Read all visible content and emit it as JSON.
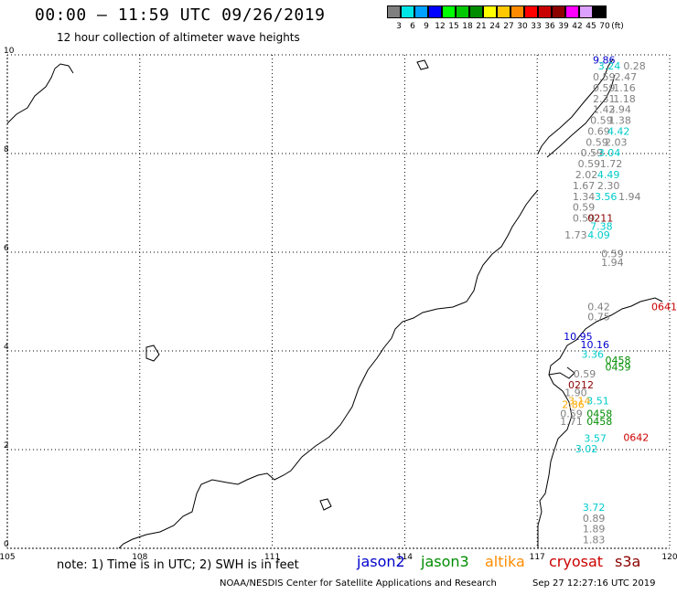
{
  "header": {
    "title": "00:00 – 11:59 UTC 09/26/2019",
    "subtitle": "12 hour collection of altimeter wave heights"
  },
  "legend": {
    "unit": "(ft)",
    "bins": [
      {
        "label": "3",
        "color": "#7f7f7f"
      },
      {
        "label": "6",
        "color": "#00e6e6"
      },
      {
        "label": "9",
        "color": "#00a0ff"
      },
      {
        "label": "12",
        "color": "#0000ff"
      },
      {
        "label": "15",
        "color": "#00ff00"
      },
      {
        "label": "18",
        "color": "#00c800"
      },
      {
        "label": "21",
        "color": "#008c00"
      },
      {
        "label": "24",
        "color": "#ffff00"
      },
      {
        "label": "27",
        "color": "#ffc800"
      },
      {
        "label": "30",
        "color": "#ff8c00"
      },
      {
        "label": "33",
        "color": "#ff0000"
      },
      {
        "label": "36",
        "color": "#c80000"
      },
      {
        "label": "39",
        "color": "#8c0000"
      },
      {
        "label": "42",
        "color": "#ff00ff"
      },
      {
        "label": "45",
        "color": "#dca0ff"
      },
      {
        "label": "70",
        "color": "#000000"
      }
    ]
  },
  "map": {
    "lon_ticks": [
      "105",
      "108",
      "111",
      "114",
      "117",
      "120"
    ],
    "lat_ticks": [
      "0",
      "2",
      "4",
      "6",
      "8",
      "10"
    ],
    "lon_range": [
      105,
      120
    ],
    "lat_range": [
      0,
      10
    ],
    "observations": [
      {
        "v": "9.86",
        "c": "#0000cc",
        "lon": 118.26,
        "lat": 9.82
      },
      {
        "v": "3.24",
        "c": "#00cccc",
        "lon": 118.38,
        "lat": 9.7
      },
      {
        "v": "0.28",
        "c": "#808080",
        "lon": 118.95,
        "lat": 9.7
      },
      {
        "v": "0.59",
        "c": "#808080",
        "lon": 118.26,
        "lat": 9.48
      },
      {
        "v": "2.47",
        "c": "#808080",
        "lon": 118.75,
        "lat": 9.48
      },
      {
        "v": "0.59",
        "c": "#808080",
        "lon": 118.26,
        "lat": 9.26
      },
      {
        "v": "1.16",
        "c": "#808080",
        "lon": 118.72,
        "lat": 9.26
      },
      {
        "v": "2.31",
        "c": "#808080",
        "lon": 118.26,
        "lat": 9.04
      },
      {
        "v": "1.18",
        "c": "#808080",
        "lon": 118.72,
        "lat": 9.04
      },
      {
        "v": "1.43",
        "c": "#808080",
        "lon": 118.26,
        "lat": 8.82
      },
      {
        "v": "2.94",
        "c": "#808080",
        "lon": 118.62,
        "lat": 8.82
      },
      {
        "v": "0.59",
        "c": "#808080",
        "lon": 118.2,
        "lat": 8.6
      },
      {
        "v": "1.38",
        "c": "#808080",
        "lon": 118.62,
        "lat": 8.6
      },
      {
        "v": "0.69",
        "c": "#808080",
        "lon": 118.14,
        "lat": 8.38
      },
      {
        "v": "4.42",
        "c": "#00cccc",
        "lon": 118.59,
        "lat": 8.38
      },
      {
        "v": "0.59",
        "c": "#808080",
        "lon": 118.1,
        "lat": 8.16
      },
      {
        "v": "2.03",
        "c": "#808080",
        "lon": 118.53,
        "lat": 8.16
      },
      {
        "v": "0.59",
        "c": "#808080",
        "lon": 117.98,
        "lat": 7.94
      },
      {
        "v": "3.04",
        "c": "#00cccc",
        "lon": 118.38,
        "lat": 7.94
      },
      {
        "v": "0.59",
        "c": "#808080",
        "lon": 117.92,
        "lat": 7.72
      },
      {
        "v": "1.72",
        "c": "#808080",
        "lon": 118.42,
        "lat": 7.72
      },
      {
        "v": "2.02",
        "c": "#808080",
        "lon": 117.86,
        "lat": 7.5
      },
      {
        "v": "4.49",
        "c": "#00cccc",
        "lon": 118.36,
        "lat": 7.5
      },
      {
        "v": "1.67",
        "c": "#808080",
        "lon": 117.8,
        "lat": 7.28
      },
      {
        "v": "2.30",
        "c": "#808080",
        "lon": 118.36,
        "lat": 7.28
      },
      {
        "v": "1.34",
        "c": "#808080",
        "lon": 117.8,
        "lat": 7.06
      },
      {
        "v": "3.56",
        "c": "#00cccc",
        "lon": 118.3,
        "lat": 7.06
      },
      {
        "v": "1.94",
        "c": "#808080",
        "lon": 118.84,
        "lat": 7.06
      },
      {
        "v": "0.59",
        "c": "#808080",
        "lon": 117.8,
        "lat": 6.84
      },
      {
        "v": "0.59",
        "c": "#808080",
        "lon": 117.8,
        "lat": 6.62
      },
      {
        "v": "0211",
        "c": "#8c0000",
        "lon": 118.14,
        "lat": 6.62
      },
      {
        "v": "7.38",
        "c": "#00cccc",
        "lon": 118.2,
        "lat": 6.45
      },
      {
        "v": "4.09",
        "c": "#00cccc",
        "lon": 118.14,
        "lat": 6.28
      },
      {
        "v": "1.73",
        "c": "#808080",
        "lon": 117.62,
        "lat": 6.28
      },
      {
        "v": "0.59",
        "c": "#808080",
        "lon": 118.45,
        "lat": 5.9
      },
      {
        "v": "1.94",
        "c": "#808080",
        "lon": 118.45,
        "lat": 5.72
      },
      {
        "v": "0.42",
        "c": "#808080",
        "lon": 118.14,
        "lat": 4.82
      },
      {
        "v": "0.75",
        "c": "#808080",
        "lon": 118.14,
        "lat": 4.62
      },
      {
        "v": "0641",
        "c": "#cc0000",
        "lon": 119.95,
        "lat": 4.82
      },
      {
        "v": "10.95",
        "c": "#0000cc",
        "lon": 117.6,
        "lat": 4.22
      },
      {
        "v": "10.16",
        "c": "#0000cc",
        "lon": 117.98,
        "lat": 4.06
      },
      {
        "v": "3.36",
        "c": "#00cccc",
        "lon": 118.0,
        "lat": 3.86
      },
      {
        "v": "0458",
        "c": "#008c00",
        "lon": 118.54,
        "lat": 3.74
      },
      {
        "v": "0459",
        "c": "#008c00",
        "lon": 118.54,
        "lat": 3.6
      },
      {
        "v": "0.59",
        "c": "#808080",
        "lon": 117.82,
        "lat": 3.46
      },
      {
        "v": "0212",
        "c": "#8c0000",
        "lon": 117.7,
        "lat": 3.24
      },
      {
        "v": "1.90",
        "c": "#808080",
        "lon": 117.62,
        "lat": 3.08
      },
      {
        "v": "3.14",
        "c": "#ffaa00",
        "lon": 117.7,
        "lat": 2.92
      },
      {
        "v": "3.51",
        "c": "#00cccc",
        "lon": 118.12,
        "lat": 2.92
      },
      {
        "v": "2.86",
        "c": "#ffaa00",
        "lon": 117.56,
        "lat": 2.84
      },
      {
        "v": "0458",
        "c": "#008c00",
        "lon": 118.12,
        "lat": 2.66
      },
      {
        "v": "0458",
        "c": "#008c00",
        "lon": 118.12,
        "lat": 2.5
      },
      {
        "v": "0.59",
        "c": "#808080",
        "lon": 117.52,
        "lat": 2.66
      },
      {
        "v": "1.71",
        "c": "#808080",
        "lon": 117.52,
        "lat": 2.5
      },
      {
        "v": "0642",
        "c": "#cc0000",
        "lon": 118.95,
        "lat": 2.18
      },
      {
        "v": "3.57",
        "c": "#00cccc",
        "lon": 118.06,
        "lat": 2.16
      },
      {
        "v": "3.02",
        "c": "#00cccc",
        "lon": 117.86,
        "lat": 1.94
      },
      {
        "v": "3.72",
        "c": "#00cccc",
        "lon": 118.03,
        "lat": 0.76
      },
      {
        "v": "0.89",
        "c": "#808080",
        "lon": 118.03,
        "lat": 0.54
      },
      {
        "v": "1.89",
        "c": "#808080",
        "lon": 118.03,
        "lat": 0.32
      },
      {
        "v": "1.83",
        "c": "#808080",
        "lon": 118.03,
        "lat": 0.1
      }
    ]
  },
  "footer": {
    "note": "note: 1) Time is in UTC; 2) SWH is in feet",
    "satellites": [
      {
        "name": "jason2",
        "color": "#0000cc"
      },
      {
        "name": "jason3",
        "color": "#008c00"
      },
      {
        "name": "altika",
        "color": "#ff8c00"
      },
      {
        "name": "cryosat",
        "color": "#cc0000"
      },
      {
        "name": "s3a",
        "color": "#8c0000"
      }
    ],
    "credit": "NOAA/NESDIS Center for Satellite Applications and Research",
    "timestamp": "Sep 27 12:27:16 UTC 2019"
  }
}
